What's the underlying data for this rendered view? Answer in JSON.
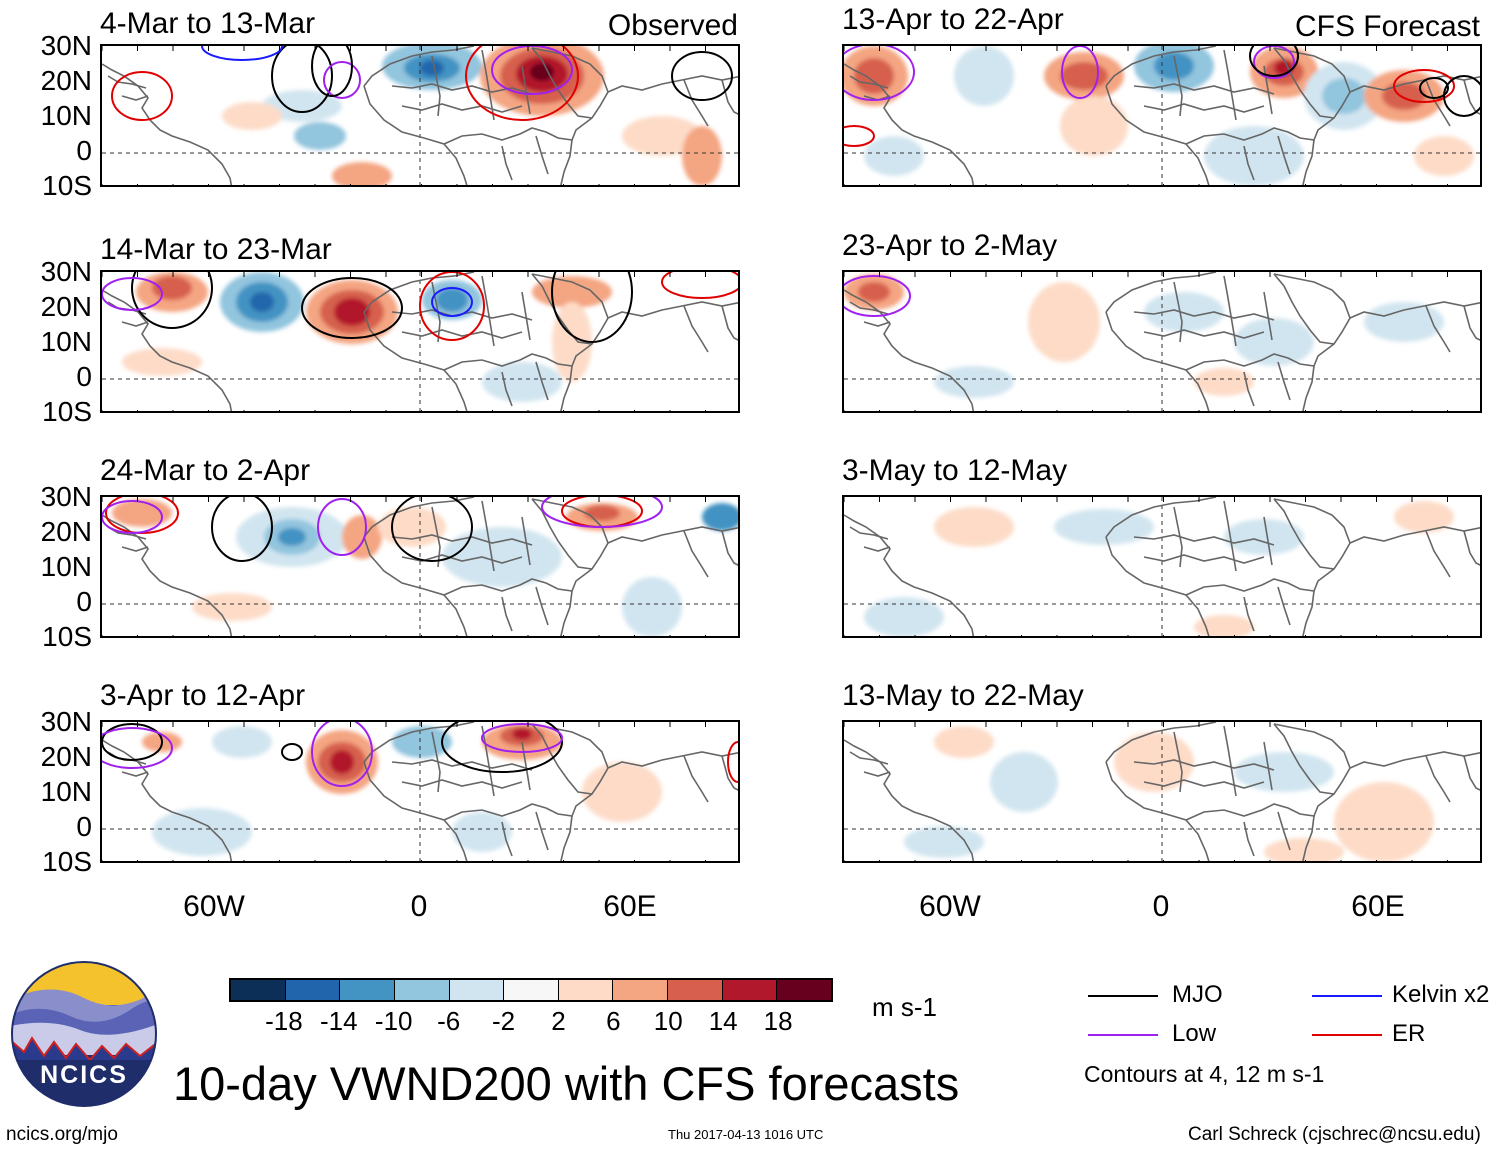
{
  "figure_title": "10-day VWND200 with CFS forecasts",
  "site": "ncics.org/mjo",
  "timestamp": "Thu 2017-04-13 1016 UTC",
  "author": "Carl Schreck (cjschrec@ncsu.edu)",
  "logo_text": "NCICS",
  "tags": {
    "observed": "Observed",
    "forecast": "CFS Forecast"
  },
  "lat_labels": [
    "30N",
    "20N",
    "10N",
    "0",
    "10S"
  ],
  "lon_labels": [
    "60W",
    "0",
    "60E"
  ],
  "panels_left": [
    {
      "title": "4-Mar to 13-Mar"
    },
    {
      "title": "14-Mar to 23-Mar"
    },
    {
      "title": "24-Mar to 2-Apr"
    },
    {
      "title": "3-Apr to 12-Apr"
    }
  ],
  "panels_right": [
    {
      "title": "13-Apr to 22-Apr"
    },
    {
      "title": "23-Apr to 2-May"
    },
    {
      "title": "3-May to 12-May"
    },
    {
      "title": "13-May to 22-May"
    }
  ],
  "colorbar": {
    "units": "m s-1",
    "colors": [
      "#0b2f57",
      "#2166ac",
      "#4393c3",
      "#92c5de",
      "#d1e5f0",
      "#f7f7f7",
      "#fddbc7",
      "#f4a582",
      "#d6604d",
      "#b2182b",
      "#67001f"
    ],
    "labels": [
      "-18",
      "-14",
      "-10",
      "-6",
      "-2",
      "2",
      "6",
      "10",
      "14",
      "18"
    ]
  },
  "legend": {
    "items": [
      {
        "label": "MJO",
        "color": "#000000"
      },
      {
        "label": "Kelvin x2",
        "color": "#1a1aff"
      },
      {
        "label": "Low",
        "color": "#a020f0"
      },
      {
        "label": "ER",
        "color": "#e00000"
      }
    ],
    "note": "Contours at 4, 12 m s-1"
  }
}
